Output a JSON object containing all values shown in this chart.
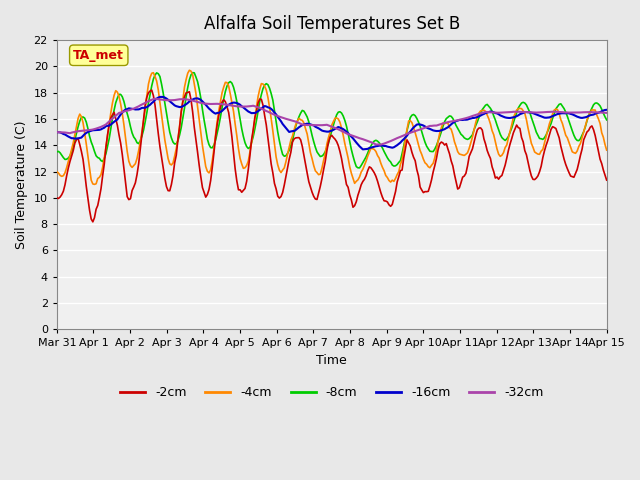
{
  "title": "Alfalfa Soil Temperatures Set B",
  "xlabel": "Time",
  "ylabel": "Soil Temperature (C)",
  "ylim": [
    0,
    22
  ],
  "yticks": [
    0,
    2,
    4,
    6,
    8,
    10,
    12,
    14,
    16,
    18,
    20,
    22
  ],
  "annotation": "TA_met",
  "annotation_color": "#cc0000",
  "annotation_bg": "#ffff99",
  "series_colors": {
    "-2cm": "#cc0000",
    "-4cm": "#ff8800",
    "-8cm": "#00cc00",
    "-16cm": "#0000cc",
    "-32cm": "#aa44aa"
  },
  "series_linewidths": {
    "-2cm": 1.2,
    "-4cm": 1.2,
    "-8cm": 1.2,
    "-16cm": 1.5,
    "-32cm": 1.5
  },
  "x_labels": [
    "Mar 31",
    "Apr 1",
    "Apr 2",
    "Apr 3",
    "Apr 4",
    "Apr 5",
    "Apr 6",
    "Apr 7",
    "Apr 8",
    "Apr 9",
    "Apr 10",
    "Apr 11",
    "Apr 12",
    "Apr 13",
    "Apr 14",
    "Apr 15"
  ],
  "bg_color": "#e8e8e8",
  "plot_bg": "#f0f0f0",
  "grid_color": "#ffffff",
  "n_points": 337,
  "legend_entries": [
    "-2cm",
    "-4cm",
    "-8cm",
    "-16cm",
    "-32cm"
  ]
}
